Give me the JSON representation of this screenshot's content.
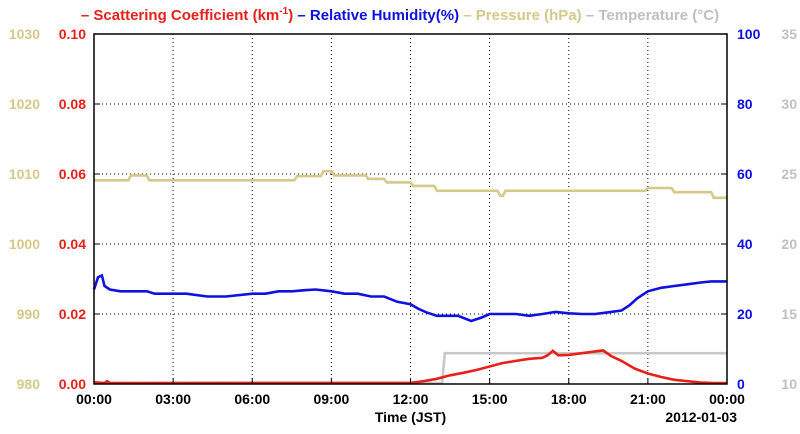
{
  "legend": [
    {
      "dash": "–",
      "text": "Scattering Coefficient (km",
      "sup": "-1",
      "tail": ")",
      "color": "#e8201a"
    },
    {
      "dash": "–",
      "text": "Relative Humidity(%)",
      "color": "#1010e0"
    },
    {
      "dash": "–",
      "text": "Pressure (hPa)",
      "color": "#d4c98a"
    },
    {
      "dash": "–",
      "text": "Temperature (°C)",
      "color": "#c8c8c8"
    }
  ],
  "colors": {
    "scattering": "#e8201a",
    "humidity": "#1010e0",
    "pressure": "#d4c98a",
    "temperature": "#c8c8c8",
    "axis": "#000000"
  },
  "chart_data": {
    "type": "line",
    "xlabel": "Time (JST)",
    "date_label": "2012-01-03",
    "x_ticks": [
      "00:00",
      "03:00",
      "06:00",
      "09:00",
      "12:00",
      "15:00",
      "18:00",
      "21:00",
      "00:00"
    ],
    "xlim": [
      0,
      24
    ],
    "grid": true,
    "axes": {
      "pressure": {
        "ticks": [
          "980",
          "990",
          "1000",
          "1010",
          "1020",
          "1030"
        ],
        "ylim": [
          980,
          1030
        ],
        "position": "outer-left"
      },
      "scattering": {
        "ticks": [
          "0.00",
          "0.02",
          "0.04",
          "0.06",
          "0.08",
          "0.10"
        ],
        "ylim": [
          0,
          0.1
        ],
        "position": "left"
      },
      "humidity": {
        "ticks": [
          "0",
          "20",
          "40",
          "60",
          "80",
          "100"
        ],
        "ylim": [
          0,
          100
        ],
        "position": "right"
      },
      "temperature": {
        "ticks": [
          "10",
          "15",
          "20",
          "25",
          "30",
          "35"
        ],
        "ylim": [
          10,
          35
        ],
        "position": "outer-right"
      }
    },
    "series": [
      {
        "name": "Pressure (hPa)",
        "axis": "pressure",
        "color": "#d4c98a",
        "x": [
          0,
          1.3,
          1.4,
          2.0,
          2.1,
          7.6,
          7.7,
          8.6,
          8.7,
          9.0,
          9.1,
          10.3,
          10.4,
          11.0,
          11.1,
          12.0,
          12.1,
          12.9,
          13.0,
          15.3,
          15.4,
          15.5,
          15.6,
          20.9,
          21.0,
          21.9,
          22.0,
          23.4,
          23.5,
          24
        ],
        "y": [
          1009.1,
          1009.1,
          1009.8,
          1009.8,
          1009.1,
          1009.1,
          1009.7,
          1009.7,
          1010.4,
          1010.4,
          1009.8,
          1009.8,
          1009.3,
          1009.3,
          1008.8,
          1008.8,
          1008.3,
          1008.3,
          1007.6,
          1007.6,
          1006.9,
          1006.9,
          1007.6,
          1007.6,
          1008.0,
          1008.0,
          1007.4,
          1007.4,
          1006.6,
          1006.6
        ]
      },
      {
        "name": "Relative Humidity(%)",
        "axis": "humidity",
        "color": "#1010e0",
        "x": [
          0,
          0.15,
          0.3,
          0.4,
          0.6,
          1.0,
          1.7,
          2.0,
          2.3,
          3.0,
          3.5,
          4.3,
          5.0,
          6.0,
          6.5,
          7.0,
          7.5,
          8.0,
          8.4,
          9.0,
          9.5,
          10.0,
          10.5,
          11.0,
          11.5,
          12.0,
          12.3,
          12.6,
          13.0,
          13.8,
          14.3,
          14.7,
          15.0,
          15.5,
          16.0,
          16.5,
          17.0,
          17.5,
          18.0,
          18.5,
          19.0,
          19.5,
          20.0,
          20.3,
          20.6,
          21.0,
          21.5,
          22.0,
          22.5,
          23.0,
          23.4,
          24
        ],
        "y": [
          27,
          30.5,
          31,
          28,
          27,
          26.5,
          26.5,
          26.5,
          25.8,
          25.8,
          25.8,
          25.0,
          25.0,
          25.8,
          25.8,
          26.5,
          26.5,
          26.8,
          27,
          26.5,
          25.8,
          25.8,
          25.0,
          25.0,
          23.5,
          22.8,
          21.5,
          20.5,
          19.5,
          19.5,
          18.0,
          19.0,
          20.0,
          20.0,
          20.0,
          19.5,
          20.0,
          20.6,
          20.2,
          20.0,
          20.0,
          20.5,
          21.0,
          22.5,
          24.5,
          26.5,
          27.5,
          28.0,
          28.5,
          29.0,
          29.3,
          29.3
        ]
      },
      {
        "name": "Scattering Coefficient (km-1)",
        "axis": "scattering",
        "color": "#e8201a",
        "x": [
          0,
          0.4,
          0.5,
          0.6,
          0.7,
          1.0,
          12.0,
          12.5,
          13.0,
          13.5,
          14.0,
          14.5,
          15.0,
          15.5,
          16.0,
          16.5,
          17.0,
          17.2,
          17.4,
          17.6,
          18.0,
          18.5,
          19.0,
          19.3,
          19.6,
          20.0,
          20.5,
          21.0,
          21.5,
          22.0,
          22.5,
          23.0,
          23.5,
          24
        ],
        "y": [
          0.0005,
          0.0002,
          0.0008,
          0.0002,
          0.0,
          0.0,
          0.0003,
          0.0008,
          0.0015,
          0.0025,
          0.0032,
          0.004,
          0.005,
          0.006,
          0.0066,
          0.0072,
          0.0075,
          0.0082,
          0.0095,
          0.0082,
          0.0083,
          0.0088,
          0.0093,
          0.0096,
          0.008,
          0.0066,
          0.0044,
          0.003,
          0.002,
          0.0012,
          0.0008,
          0.0004,
          0.0002,
          0.0001
        ]
      },
      {
        "name": "Temperature (°C)",
        "axis": "temperature",
        "color": "#c8c8c8",
        "x": [
          0,
          13.2,
          13.3,
          24
        ],
        "y": [
          10.0,
          10.0,
          12.2,
          12.2
        ]
      }
    ]
  }
}
